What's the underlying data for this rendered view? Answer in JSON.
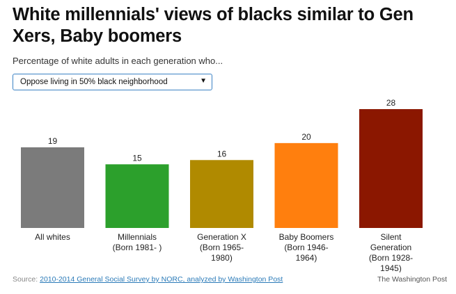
{
  "title": "White millennials' views of blacks similar to Gen Xers, Baby boomers",
  "subtitle": "Percentage of white adults in each generation who...",
  "dropdown": {
    "selected": "Oppose living in 50% black neighborhood",
    "arrow_icon": "triangle-down-icon"
  },
  "chart_data": {
    "type": "bar",
    "categories": [
      [
        "All whites"
      ],
      [
        "Millennials",
        "(Born 1981- )"
      ],
      [
        "Generation X",
        "(Born 1965-",
        "1980)"
      ],
      [
        "Baby Boomers",
        "(Born 1946-",
        "1964)"
      ],
      [
        "Silent",
        "Generation",
        "(Born 1928-",
        "1945)"
      ]
    ],
    "values": [
      19,
      15,
      16,
      20,
      28
    ],
    "colors": [
      "#7b7b7b",
      "#2ca02c",
      "#b08a00",
      "#ff7f0e",
      "#8b1700"
    ],
    "ylim": [
      0,
      28
    ],
    "grid": false
  },
  "source": {
    "prefix": "Source:",
    "link_text": "2010-2014 General Social Survey by NORC, analyzed by Washington Post"
  },
  "credit": "The Washington Post"
}
